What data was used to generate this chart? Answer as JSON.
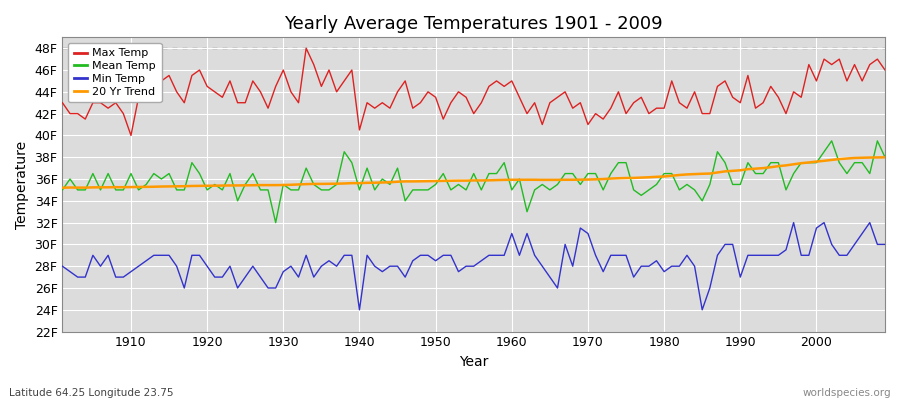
{
  "title": "Yearly Average Temperatures 1901 - 2009",
  "xlabel": "Year",
  "ylabel": "Temperature",
  "lat_lon_label": "Latitude 64.25 Longitude 23.75",
  "worldspecies_label": "worldspecies.org",
  "ylim": [
    22,
    49
  ],
  "yticks": [
    22,
    24,
    26,
    28,
    30,
    32,
    34,
    36,
    38,
    40,
    42,
    44,
    46,
    48
  ],
  "ytick_labels": [
    "22F",
    "24F",
    "26F",
    "28F",
    "30F",
    "32F",
    "34F",
    "36F",
    "38F",
    "40F",
    "42F",
    "44F",
    "46F",
    "48F"
  ],
  "xlim": [
    1901,
    2009
  ],
  "xticks": [
    1910,
    1920,
    1930,
    1940,
    1950,
    1960,
    1970,
    1980,
    1990,
    2000
  ],
  "fig_bg_color": "#ffffff",
  "plot_bg_color": "#dcdcdc",
  "grid_color": "#ffffff",
  "max_color": "#dd2222",
  "mean_color": "#22bb22",
  "min_color": "#3333cc",
  "trend_color": "#ff9900",
  "years": [
    1901,
    1902,
    1903,
    1904,
    1905,
    1906,
    1907,
    1908,
    1909,
    1910,
    1911,
    1912,
    1913,
    1914,
    1915,
    1916,
    1917,
    1918,
    1919,
    1920,
    1921,
    1922,
    1923,
    1924,
    1925,
    1926,
    1927,
    1928,
    1929,
    1930,
    1931,
    1932,
    1933,
    1934,
    1935,
    1936,
    1937,
    1938,
    1939,
    1940,
    1941,
    1942,
    1943,
    1944,
    1945,
    1946,
    1947,
    1948,
    1949,
    1950,
    1951,
    1952,
    1953,
    1954,
    1955,
    1956,
    1957,
    1958,
    1959,
    1960,
    1961,
    1962,
    1963,
    1964,
    1965,
    1966,
    1967,
    1968,
    1969,
    1970,
    1971,
    1972,
    1973,
    1974,
    1975,
    1976,
    1977,
    1978,
    1979,
    1980,
    1981,
    1982,
    1983,
    1984,
    1985,
    1986,
    1987,
    1988,
    1989,
    1990,
    1991,
    1992,
    1993,
    1994,
    1995,
    1996,
    1997,
    1998,
    1999,
    2000,
    2001,
    2002,
    2003,
    2004,
    2005,
    2006,
    2007,
    2008,
    2009
  ],
  "max_temps": [
    43.0,
    42.0,
    42.0,
    41.5,
    43.0,
    43.0,
    42.5,
    43.0,
    42.0,
    40.0,
    43.5,
    44.0,
    44.5,
    45.0,
    45.5,
    44.0,
    43.0,
    45.5,
    46.0,
    44.5,
    44.0,
    43.5,
    45.0,
    43.0,
    43.0,
    45.0,
    44.0,
    42.5,
    44.5,
    46.0,
    44.0,
    43.0,
    48.0,
    46.5,
    44.5,
    46.0,
    44.0,
    45.0,
    46.0,
    40.5,
    43.0,
    42.5,
    43.0,
    42.5,
    44.0,
    45.0,
    42.5,
    43.0,
    44.0,
    43.5,
    41.5,
    43.0,
    44.0,
    43.5,
    42.0,
    43.0,
    44.5,
    45.0,
    44.5,
    45.0,
    43.5,
    42.0,
    43.0,
    41.0,
    43.0,
    43.5,
    44.0,
    42.5,
    43.0,
    41.0,
    42.0,
    41.5,
    42.5,
    44.0,
    42.0,
    43.0,
    43.5,
    42.0,
    42.5,
    42.5,
    45.0,
    43.0,
    42.5,
    44.0,
    42.0,
    42.0,
    44.5,
    45.0,
    43.5,
    43.0,
    45.5,
    42.5,
    43.0,
    44.5,
    43.5,
    42.0,
    44.0,
    43.5,
    46.5,
    45.0,
    47.0,
    46.5,
    47.0,
    45.0,
    46.5,
    45.0,
    46.5,
    47.0,
    46.0
  ],
  "mean_temps": [
    35.0,
    36.0,
    35.0,
    35.0,
    36.5,
    35.0,
    36.5,
    35.0,
    35.0,
    36.5,
    35.0,
    35.5,
    36.5,
    36.0,
    36.5,
    35.0,
    35.0,
    37.5,
    36.5,
    35.0,
    35.5,
    35.0,
    36.5,
    34.0,
    35.5,
    36.5,
    35.0,
    35.0,
    32.0,
    35.5,
    35.0,
    35.0,
    37.0,
    35.5,
    35.0,
    35.0,
    35.5,
    38.5,
    37.5,
    35.0,
    37.0,
    35.0,
    36.0,
    35.5,
    37.0,
    34.0,
    35.0,
    35.0,
    35.0,
    35.5,
    36.5,
    35.0,
    35.5,
    35.0,
    36.5,
    35.0,
    36.5,
    36.5,
    37.5,
    35.0,
    36.0,
    33.0,
    35.0,
    35.5,
    35.0,
    35.5,
    36.5,
    36.5,
    35.5,
    36.5,
    36.5,
    35.0,
    36.5,
    37.5,
    37.5,
    35.0,
    34.5,
    35.0,
    35.5,
    36.5,
    36.5,
    35.0,
    35.5,
    35.0,
    34.0,
    35.5,
    38.5,
    37.5,
    35.5,
    35.5,
    37.5,
    36.5,
    36.5,
    37.5,
    37.5,
    35.0,
    36.5,
    37.5,
    37.5,
    37.5,
    38.5,
    39.5,
    37.5,
    36.5,
    37.5,
    37.5,
    36.5,
    39.5,
    38.0
  ],
  "min_temps": [
    28.0,
    27.5,
    27.0,
    27.0,
    29.0,
    28.0,
    29.0,
    27.0,
    27.0,
    27.5,
    28.0,
    28.5,
    29.0,
    29.0,
    29.0,
    28.0,
    26.0,
    29.0,
    29.0,
    28.0,
    27.0,
    27.0,
    28.0,
    26.0,
    27.0,
    28.0,
    27.0,
    26.0,
    26.0,
    27.5,
    28.0,
    27.0,
    29.0,
    27.0,
    28.0,
    28.5,
    28.0,
    29.0,
    29.0,
    24.0,
    29.0,
    28.0,
    27.5,
    28.0,
    28.0,
    27.0,
    28.5,
    29.0,
    29.0,
    28.5,
    29.0,
    29.0,
    27.5,
    28.0,
    28.0,
    28.5,
    29.0,
    29.0,
    29.0,
    31.0,
    29.0,
    31.0,
    29.0,
    28.0,
    27.0,
    26.0,
    30.0,
    28.0,
    31.5,
    31.0,
    29.0,
    27.5,
    29.0,
    29.0,
    29.0,
    27.0,
    28.0,
    28.0,
    28.5,
    27.5,
    28.0,
    28.0,
    29.0,
    28.0,
    24.0,
    26.0,
    29.0,
    30.0,
    30.0,
    27.0,
    29.0,
    29.0,
    29.0,
    29.0,
    29.0,
    29.5,
    32.0,
    29.0,
    29.0,
    31.5,
    32.0,
    30.0,
    29.0,
    29.0,
    30.0,
    31.0,
    32.0,
    30.0,
    30.0
  ],
  "trend_temps": [
    35.2,
    35.22,
    35.21,
    35.21,
    35.23,
    35.24,
    35.24,
    35.25,
    35.25,
    35.26,
    35.27,
    35.28,
    35.29,
    35.31,
    35.32,
    35.33,
    35.34,
    35.36,
    35.37,
    35.38,
    35.39,
    35.4,
    35.41,
    35.41,
    35.42,
    35.43,
    35.44,
    35.44,
    35.44,
    35.45,
    35.47,
    35.5,
    35.53,
    35.55,
    35.55,
    35.56,
    35.57,
    35.59,
    35.62,
    35.62,
    35.65,
    35.66,
    35.68,
    35.7,
    35.75,
    35.78,
    35.78,
    35.79,
    35.8,
    35.81,
    35.83,
    35.84,
    35.85,
    35.85,
    35.87,
    35.87,
    35.88,
    35.9,
    35.92,
    35.93,
    35.93,
    35.93,
    35.93,
    35.92,
    35.92,
    35.92,
    35.93,
    35.93,
    35.94,
    35.95,
    35.97,
    36.0,
    36.04,
    36.07,
    36.09,
    36.1,
    36.13,
    36.16,
    36.2,
    36.23,
    36.3,
    36.37,
    36.42,
    36.45,
    36.48,
    36.5,
    36.6,
    36.7,
    36.75,
    36.8,
    36.9,
    36.95,
    37.0,
    37.08,
    37.18,
    37.25,
    37.35,
    37.45,
    37.52,
    37.6,
    37.67,
    37.75,
    37.83,
    37.88,
    37.93,
    37.95,
    37.97,
    37.98,
    37.99
  ]
}
